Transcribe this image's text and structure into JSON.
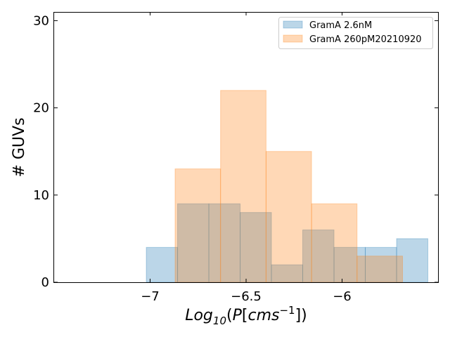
{
  "chart_data": {
    "type": "bar",
    "xlabel": "Log10(P[cms^-1])",
    "ylabel": "# GUVs",
    "xlim": [
      -7.5,
      -5.5
    ],
    "ylim": [
      0,
      31
    ],
    "x_ticks": [
      -7,
      -6.5,
      -6
    ],
    "x_tick_labels": [
      "-7",
      "-6.5",
      "-6"
    ],
    "y_ticks": [
      0,
      10,
      20,
      30
    ],
    "y_tick_labels": [
      "0",
      "10",
      "20",
      "30"
    ],
    "grid": false,
    "legend": "top-right",
    "series": [
      {
        "name": "GramA 2.6nM",
        "color": "#1f77b4",
        "bins": [
          {
            "x0": -7.02,
            "x1": -6.857,
            "count": 4
          },
          {
            "x0": -6.857,
            "x1": -6.694,
            "count": 9
          },
          {
            "x0": -6.694,
            "x1": -6.531,
            "count": 9
          },
          {
            "x0": -6.531,
            "x1": -6.368,
            "count": 8
          },
          {
            "x0": -6.368,
            "x1": -6.205,
            "count": 2
          },
          {
            "x0": -6.205,
            "x1": -6.042,
            "count": 6
          },
          {
            "x0": -6.042,
            "x1": -5.879,
            "count": 4
          },
          {
            "x0": -5.879,
            "x1": -5.716,
            "count": 4
          },
          {
            "x0": -5.716,
            "x1": -5.553,
            "count": 5
          }
        ]
      },
      {
        "name": "GramA 260pM20210920",
        "color": "#ff7f0e",
        "bins": [
          {
            "x0": -6.87,
            "x1": -6.633,
            "count": 13
          },
          {
            "x0": -6.633,
            "x1": -6.396,
            "count": 22
          },
          {
            "x0": -6.396,
            "x1": -6.159,
            "count": 15
          },
          {
            "x0": -6.159,
            "x1": -5.922,
            "count": 9
          },
          {
            "x0": -5.922,
            "x1": -5.685,
            "count": 3
          }
        ]
      }
    ]
  }
}
